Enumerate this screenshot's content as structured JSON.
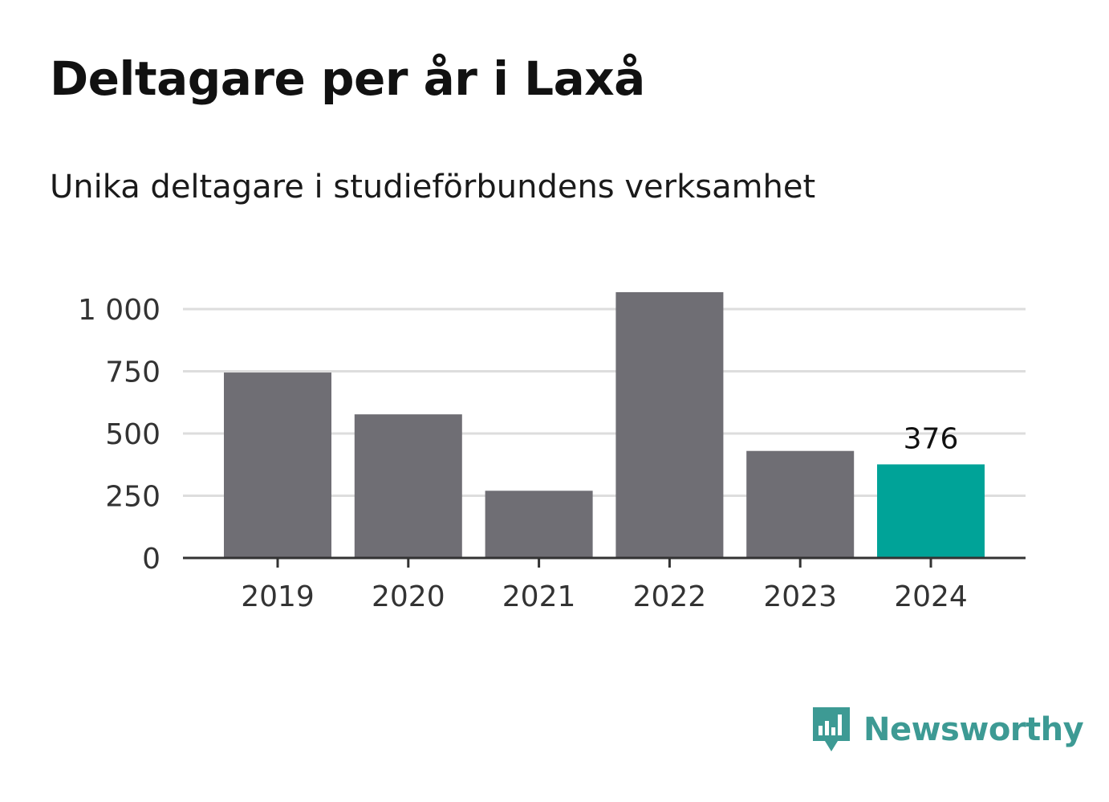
{
  "header": {
    "title": "Deltagare per år i Laxå",
    "subtitle": "Unika deltagare i studieförbundens verksamhet"
  },
  "chart_data": {
    "type": "bar",
    "title": "Deltagare per år i Laxå",
    "subtitle": "Unika deltagare i studieförbundens verksamhet",
    "categories": [
      "2019",
      "2020",
      "2021",
      "2022",
      "2023",
      "2024"
    ],
    "values": [
      745,
      577,
      270,
      1068,
      430,
      376
    ],
    "ylim": [
      0,
      1000
    ],
    "yticks": [
      0,
      250,
      500,
      750,
      1000
    ],
    "ytick_labels": [
      "0",
      "250",
      "500",
      "750",
      "1 000"
    ],
    "grid": true,
    "highlight_index": 5,
    "data_labels": [
      {
        "category": "2024",
        "text": "376"
      }
    ],
    "colors": {
      "bar": "#6f6e74",
      "highlight": "#00a398",
      "grid": "#dddddd",
      "axis": "#333333"
    }
  },
  "branding": {
    "name": "Newsworthy",
    "logo_icon": "newsworthy-bar-chart-icon",
    "color": "#3d9a94"
  }
}
